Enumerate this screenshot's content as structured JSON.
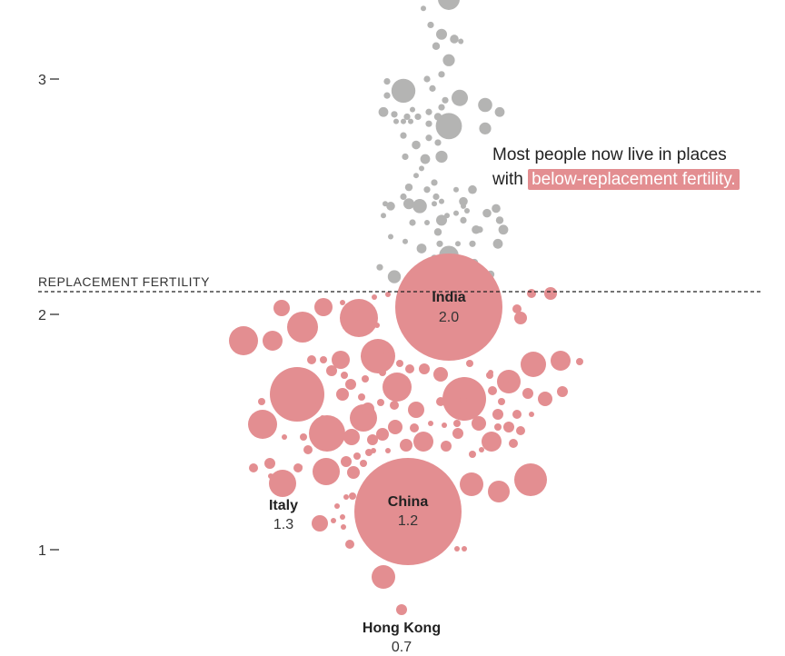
{
  "chart_data": {
    "type": "scatter",
    "title": "",
    "ylabel": "",
    "y_ticks": [
      {
        "value": 3,
        "label": "3"
      },
      {
        "value": 2,
        "label": "2"
      },
      {
        "value": 1,
        "label": "1"
      }
    ],
    "ylim": [
      0.6,
      3.34
    ],
    "reference_line": {
      "value": 2.1,
      "label": "REPLACEMENT FERTILITY"
    },
    "annotation": {
      "line1": "Most people now live in places",
      "line2_prefix": "with ",
      "highlight": "below-replacement fertility."
    },
    "colors": {
      "above_replacement": "#b4b4b3",
      "below_replacement": "#e38e91"
    },
    "labeled_countries": [
      {
        "name": "India",
        "value": "2.0"
      },
      {
        "name": "China",
        "value": "1.2"
      },
      {
        "name": "Italy",
        "value": "1.3"
      },
      {
        "name": "Hong Kong",
        "value": "0.7"
      }
    ],
    "bubbles": [
      {
        "x": 0,
        "y": 3.34,
        "r": 1.0,
        "g": "a"
      },
      {
        "x": -0.7,
        "y": 3.3,
        "r": 0.25,
        "g": "a"
      },
      {
        "x": -0.5,
        "y": 3.23,
        "r": 0.3,
        "g": "a"
      },
      {
        "x": -0.2,
        "y": 3.19,
        "r": 0.5,
        "g": "a"
      },
      {
        "x": 0.15,
        "y": 3.17,
        "r": 0.4,
        "g": "a"
      },
      {
        "x": 0.33,
        "y": 3.16,
        "r": 0.2,
        "g": "a"
      },
      {
        "x": -0.35,
        "y": 3.14,
        "r": 0.35,
        "g": "a"
      },
      {
        "x": 0.0,
        "y": 3.08,
        "r": 0.55,
        "g": "a"
      },
      {
        "x": -0.2,
        "y": 3.02,
        "r": 0.3,
        "g": "a"
      },
      {
        "x": -1.7,
        "y": 2.99,
        "r": 0.3,
        "g": "a"
      },
      {
        "x": -0.6,
        "y": 3.0,
        "r": 0.3,
        "g": "a"
      },
      {
        "x": -1.25,
        "y": 2.95,
        "r": 1.1,
        "g": "a"
      },
      {
        "x": -0.45,
        "y": 2.96,
        "r": 0.3,
        "g": "a"
      },
      {
        "x": -1.7,
        "y": 2.93,
        "r": 0.3,
        "g": "a"
      },
      {
        "x": 0.3,
        "y": 2.92,
        "r": 0.75,
        "g": "a"
      },
      {
        "x": -0.1,
        "y": 2.91,
        "r": 0.3,
        "g": "a"
      },
      {
        "x": 1.0,
        "y": 2.89,
        "r": 0.65,
        "g": "a"
      },
      {
        "x": -0.2,
        "y": 2.88,
        "r": 0.3,
        "g": "a"
      },
      {
        "x": -1.0,
        "y": 2.87,
        "r": 0.25,
        "g": "a"
      },
      {
        "x": -0.55,
        "y": 2.86,
        "r": 0.3,
        "g": "a"
      },
      {
        "x": 1.4,
        "y": 2.86,
        "r": 0.45,
        "g": "a"
      },
      {
        "x": -1.8,
        "y": 2.86,
        "r": 0.45,
        "g": "a"
      },
      {
        "x": -0.3,
        "y": 2.84,
        "r": 0.35,
        "g": "a"
      },
      {
        "x": -1.5,
        "y": 2.85,
        "r": 0.3,
        "g": "a"
      },
      {
        "x": -1.15,
        "y": 2.84,
        "r": 0.3,
        "g": "a"
      },
      {
        "x": -0.85,
        "y": 2.84,
        "r": 0.3,
        "g": "a"
      },
      {
        "x": -0.55,
        "y": 2.81,
        "r": 0.3,
        "g": "a"
      },
      {
        "x": 0.0,
        "y": 2.8,
        "r": 1.2,
        "g": "a"
      },
      {
        "x": -1.45,
        "y": 2.82,
        "r": 0.25,
        "g": "a"
      },
      {
        "x": -1.25,
        "y": 2.82,
        "r": 0.25,
        "g": "a"
      },
      {
        "x": -1.05,
        "y": 2.82,
        "r": 0.25,
        "g": "a"
      },
      {
        "x": 1.0,
        "y": 2.79,
        "r": 0.55,
        "g": "a"
      },
      {
        "x": -0.55,
        "y": 2.75,
        "r": 0.3,
        "g": "a"
      },
      {
        "x": -0.3,
        "y": 2.73,
        "r": 0.3,
        "g": "a"
      },
      {
        "x": -1.25,
        "y": 2.76,
        "r": 0.3,
        "g": "a"
      },
      {
        "x": -0.9,
        "y": 2.72,
        "r": 0.4,
        "g": "a"
      },
      {
        "x": -0.65,
        "y": 2.66,
        "r": 0.45,
        "g": "a"
      },
      {
        "x": -1.2,
        "y": 2.67,
        "r": 0.3,
        "g": "a"
      },
      {
        "x": -0.2,
        "y": 2.67,
        "r": 0.55,
        "g": "a"
      },
      {
        "x": -0.75,
        "y": 2.62,
        "r": 0.2,
        "g": "a"
      },
      {
        "x": -0.9,
        "y": 2.59,
        "r": 0.25,
        "g": "a"
      },
      {
        "x": -0.4,
        "y": 2.56,
        "r": 0.3,
        "g": "a"
      },
      {
        "x": -1.1,
        "y": 2.54,
        "r": 0.35,
        "g": "a"
      },
      {
        "x": 0.2,
        "y": 2.53,
        "r": 0.25,
        "g": "a"
      },
      {
        "x": -0.6,
        "y": 2.53,
        "r": 0.3,
        "g": "a"
      },
      {
        "x": 0.65,
        "y": 2.53,
        "r": 0.4,
        "g": "a"
      },
      {
        "x": -1.25,
        "y": 2.5,
        "r": 0.3,
        "g": "a"
      },
      {
        "x": -0.35,
        "y": 2.5,
        "r": 0.3,
        "g": "a"
      },
      {
        "x": -1.1,
        "y": 2.47,
        "r": 0.5,
        "g": "a"
      },
      {
        "x": -0.4,
        "y": 2.47,
        "r": 0.2,
        "g": "a"
      },
      {
        "x": 0.4,
        "y": 2.48,
        "r": 0.4,
        "g": "a"
      },
      {
        "x": -1.75,
        "y": 2.47,
        "r": 0.25,
        "g": "a"
      },
      {
        "x": -1.6,
        "y": 2.46,
        "r": 0.4,
        "g": "a"
      },
      {
        "x": -0.2,
        "y": 2.48,
        "r": 0.2,
        "g": "a"
      },
      {
        "x": 0.4,
        "y": 2.46,
        "r": 0.2,
        "g": "a"
      },
      {
        "x": -0.8,
        "y": 2.46,
        "r": 0.65,
        "g": "a"
      },
      {
        "x": 1.3,
        "y": 2.45,
        "r": 0.4,
        "g": "a"
      },
      {
        "x": 1.05,
        "y": 2.43,
        "r": 0.4,
        "g": "a"
      },
      {
        "x": 0.5,
        "y": 2.44,
        "r": 0.25,
        "g": "a"
      },
      {
        "x": 0.2,
        "y": 2.43,
        "r": 0.2,
        "g": "a"
      },
      {
        "x": -1.8,
        "y": 2.42,
        "r": 0.25,
        "g": "a"
      },
      {
        "x": -0.05,
        "y": 2.42,
        "r": 0.25,
        "g": "a"
      },
      {
        "x": -0.2,
        "y": 2.4,
        "r": 0.5,
        "g": "a"
      },
      {
        "x": 1.4,
        "y": 2.4,
        "r": 0.35,
        "g": "a"
      },
      {
        "x": 0.4,
        "y": 2.4,
        "r": 0.3,
        "g": "a"
      },
      {
        "x": -1.0,
        "y": 2.39,
        "r": 0.3,
        "g": "a"
      },
      {
        "x": 0.85,
        "y": 2.36,
        "r": 0.3,
        "g": "a"
      },
      {
        "x": -0.6,
        "y": 2.39,
        "r": 0.2,
        "g": "a"
      },
      {
        "x": 1.5,
        "y": 2.36,
        "r": 0.45,
        "g": "a"
      },
      {
        "x": 0.75,
        "y": 2.36,
        "r": 0.4,
        "g": "a"
      },
      {
        "x": -0.3,
        "y": 2.35,
        "r": 0.35,
        "g": "a"
      },
      {
        "x": -1.6,
        "y": 2.33,
        "r": 0.25,
        "g": "a"
      },
      {
        "x": -1.2,
        "y": 2.31,
        "r": 0.25,
        "g": "a"
      },
      {
        "x": 0.25,
        "y": 2.3,
        "r": 0.2,
        "g": "a"
      },
      {
        "x": -0.25,
        "y": 2.3,
        "r": 0.3,
        "g": "a"
      },
      {
        "x": 0.65,
        "y": 2.3,
        "r": 0.3,
        "g": "a"
      },
      {
        "x": 1.35,
        "y": 2.3,
        "r": 0.45,
        "g": "a"
      },
      {
        "x": -0.75,
        "y": 2.28,
        "r": 0.45,
        "g": "a"
      },
      {
        "x": 0.0,
        "y": 2.25,
        "r": 0.9,
        "g": "a"
      },
      {
        "x": -0.4,
        "y": 2.24,
        "r": 0.3,
        "g": "a"
      },
      {
        "x": 0.7,
        "y": 2.22,
        "r": 0.35,
        "g": "a"
      },
      {
        "x": -0.1,
        "y": 2.2,
        "r": 0.3,
        "g": "a"
      },
      {
        "x": -1.9,
        "y": 2.2,
        "r": 0.3,
        "g": "a"
      },
      {
        "x": -1.5,
        "y": 2.16,
        "r": 0.6,
        "g": "a"
      },
      {
        "x": 1.15,
        "y": 2.17,
        "r": 0.35,
        "g": "a"
      },
      {
        "x": -0.7,
        "y": 2.15,
        "r": 0.55,
        "g": "a"
      }
    ],
    "bubbles_below": "g=b"
  },
  "layout_note_removed": true
}
